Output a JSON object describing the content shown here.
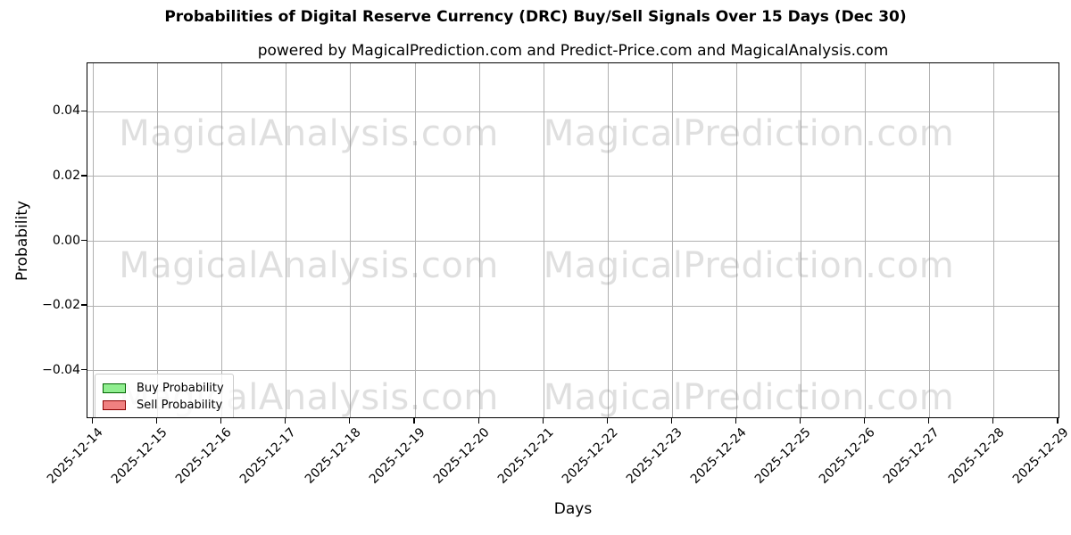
{
  "chart_data": {
    "type": "line",
    "title": "Probabilities of Digital Reserve Currency (DRC) Buy/Sell Signals Over 15 Days (Dec 30)",
    "subtitle": "powered by MagicalPrediction.com and Predict-Price.com and MagicalAnalysis.com",
    "xlabel": "Days",
    "ylabel": "Probability",
    "categories": [
      "2025-12-14",
      "2025-12-15",
      "2025-12-16",
      "2025-12-17",
      "2025-12-18",
      "2025-12-19",
      "2025-12-20",
      "2025-12-21",
      "2025-12-22",
      "2025-12-23",
      "2025-12-24",
      "2025-12-25",
      "2025-12-26",
      "2025-12-27",
      "2025-12-28",
      "2025-12-29"
    ],
    "series": [
      {
        "name": "Buy Probability",
        "fill_color": "#90ee90",
        "edge_color": "#006400",
        "values": []
      },
      {
        "name": "Sell Probability",
        "fill_color": "#f08080",
        "edge_color": "#8b0000",
        "values": []
      }
    ],
    "plot_empty": true,
    "ylim": [
      -0.055,
      0.055
    ],
    "yticks": [
      {
        "value": 0.04,
        "label": "0.04"
      },
      {
        "value": 0.02,
        "label": "0.02"
      },
      {
        "value": 0.0,
        "label": "0.00"
      },
      {
        "value": -0.02,
        "label": "−0.02"
      },
      {
        "value": -0.04,
        "label": "−0.04"
      }
    ],
    "grid": true,
    "legend_position": "lower left"
  },
  "watermark": {
    "left_text": "MagicalAnalysis.com",
    "right_text": "MagicalPrediction.com",
    "row_count": 3
  },
  "colors": {
    "grid": "#b0b0b0",
    "spine": "#000000",
    "background": "#ffffff",
    "watermark": "rgba(128,128,128,0.25)"
  }
}
